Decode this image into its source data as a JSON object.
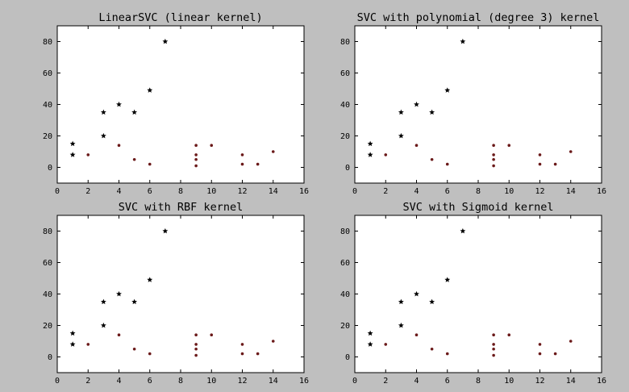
{
  "figure": {
    "background": "#bfbfbf",
    "plot_background": "#ffffff",
    "star_color": "#000000",
    "dot_color": "#6b1a1a"
  },
  "chart_data": [
    {
      "type": "scatter",
      "title": "LinearSVC (linear kernel)",
      "xlim": [
        0,
        16
      ],
      "ylim": [
        -10,
        90
      ],
      "xticks": [
        0,
        2,
        4,
        6,
        8,
        10,
        12,
        14,
        16
      ],
      "yticks": [
        0,
        20,
        40,
        60,
        80
      ],
      "grid": false,
      "series": [
        {
          "marker": "star",
          "x": [
            1,
            1,
            3,
            3,
            4,
            5,
            6,
            7
          ],
          "y": [
            15,
            8,
            35,
            20,
            40,
            35,
            49,
            80
          ]
        },
        {
          "marker": "dot",
          "x": [
            2,
            4,
            5,
            6,
            9,
            9,
            9,
            9,
            10,
            12,
            12,
            13,
            14
          ],
          "y": [
            8,
            14,
            5,
            2,
            14,
            8,
            5,
            1,
            14,
            8,
            2,
            2,
            10
          ]
        }
      ]
    },
    {
      "type": "scatter",
      "title": "SVC with polynomial (degree 3) kernel",
      "xlim": [
        0,
        16
      ],
      "ylim": [
        -10,
        90
      ],
      "xticks": [
        0,
        2,
        4,
        6,
        8,
        10,
        12,
        14,
        16
      ],
      "yticks": [
        0,
        20,
        40,
        60,
        80
      ],
      "grid": false,
      "series": [
        {
          "marker": "star",
          "x": [
            1,
            1,
            3,
            3,
            4,
            5,
            6,
            7
          ],
          "y": [
            15,
            8,
            35,
            20,
            40,
            35,
            49,
            80
          ]
        },
        {
          "marker": "dot",
          "x": [
            2,
            4,
            5,
            6,
            9,
            9,
            9,
            9,
            10,
            12,
            12,
            13,
            14
          ],
          "y": [
            8,
            14,
            5,
            2,
            14,
            8,
            5,
            1,
            14,
            8,
            2,
            2,
            10
          ]
        }
      ]
    },
    {
      "type": "scatter",
      "title": "SVC with RBF kernel",
      "xlim": [
        0,
        16
      ],
      "ylim": [
        -10,
        90
      ],
      "xticks": [
        0,
        2,
        4,
        6,
        8,
        10,
        12,
        14,
        16
      ],
      "yticks": [
        0,
        20,
        40,
        60,
        80
      ],
      "grid": false,
      "series": [
        {
          "marker": "star",
          "x": [
            1,
            1,
            3,
            3,
            4,
            5,
            6,
            7
          ],
          "y": [
            15,
            8,
            35,
            20,
            40,
            35,
            49,
            80
          ]
        },
        {
          "marker": "dot",
          "x": [
            2,
            4,
            5,
            6,
            9,
            9,
            9,
            9,
            10,
            12,
            12,
            13,
            14
          ],
          "y": [
            8,
            14,
            5,
            2,
            14,
            8,
            5,
            1,
            14,
            8,
            2,
            2,
            10
          ]
        }
      ]
    },
    {
      "type": "scatter",
      "title": "SVC with Sigmoid kernel",
      "xlim": [
        0,
        16
      ],
      "ylim": [
        -10,
        90
      ],
      "xticks": [
        0,
        2,
        4,
        6,
        8,
        10,
        12,
        14,
        16
      ],
      "yticks": [
        0,
        20,
        40,
        60,
        80
      ],
      "grid": false,
      "series": [
        {
          "marker": "star",
          "x": [
            1,
            1,
            3,
            3,
            4,
            5,
            6,
            7
          ],
          "y": [
            15,
            8,
            35,
            20,
            40,
            35,
            49,
            80
          ]
        },
        {
          "marker": "dot",
          "x": [
            2,
            4,
            5,
            6,
            9,
            9,
            9,
            9,
            10,
            12,
            12,
            13,
            14
          ],
          "y": [
            8,
            14,
            5,
            2,
            14,
            8,
            5,
            1,
            14,
            8,
            2,
            2,
            10
          ]
        }
      ]
    }
  ]
}
